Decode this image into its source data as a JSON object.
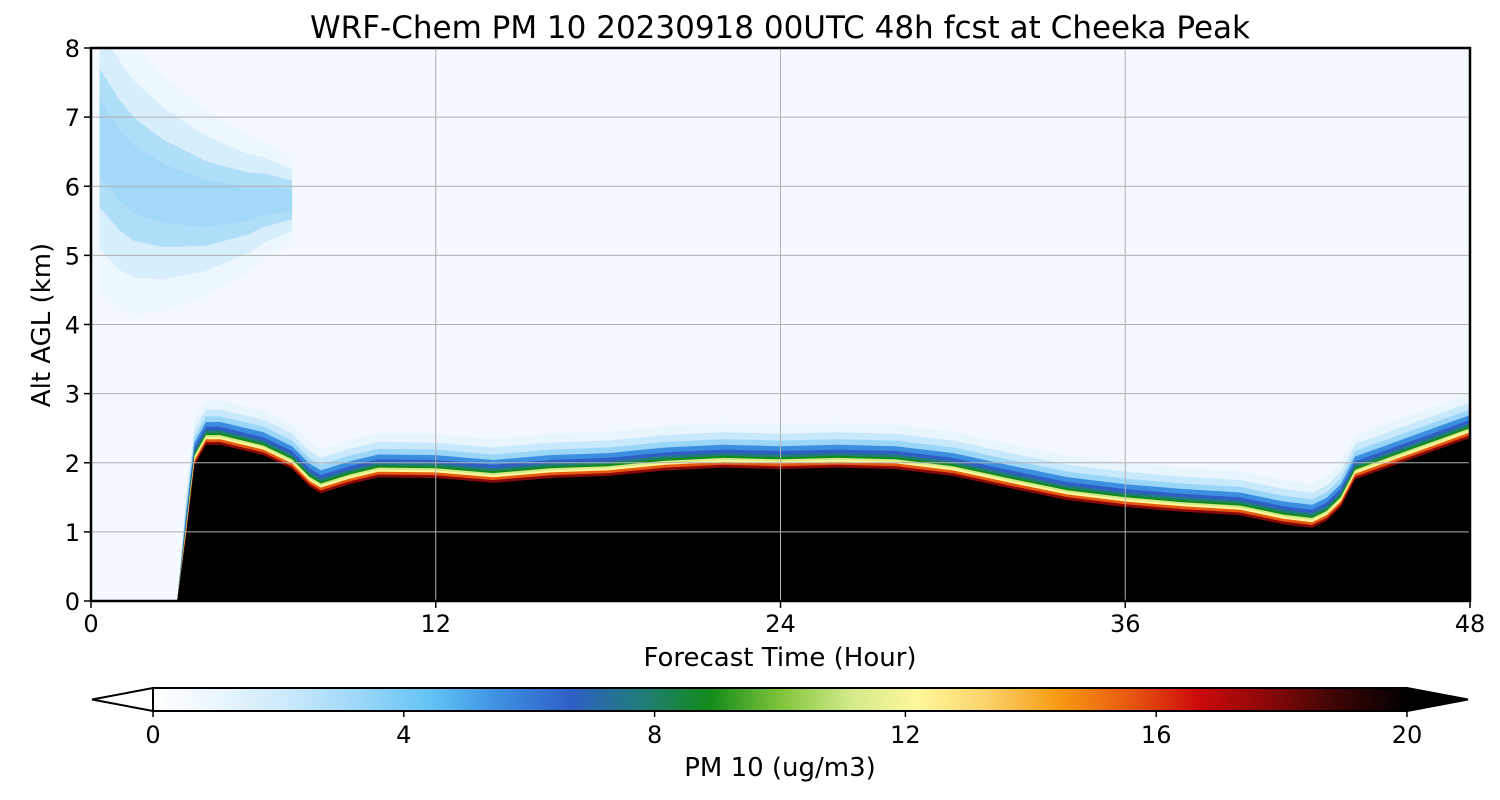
{
  "chart_data": {
    "type": "heatmap",
    "title": "WRF-Chem PM 10  20230918 00UTC 48h fcst at Cheeka Peak",
    "xlabel": "Forecast Time (Hour)",
    "ylabel": "Alt AGL (km)",
    "xlim": [
      0,
      48
    ],
    "ylim": [
      0,
      8
    ],
    "x_ticks": [
      0,
      12,
      24,
      36,
      48
    ],
    "y_ticks": [
      0,
      1,
      2,
      3,
      4,
      5,
      6,
      7,
      8
    ],
    "grid": true,
    "colorbar": {
      "label": "PM 10  (ug/m3)",
      "range": [
        0,
        20
      ],
      "ticks": [
        0,
        4,
        8,
        12,
        16,
        20
      ],
      "extend": "both",
      "colors": [
        "#ffffff",
        "#e8f5fd",
        "#c8e8fb",
        "#99d6f8",
        "#62c3f5",
        "#3c8ee0",
        "#2f5fc6",
        "#1f7c7a",
        "#138b1a",
        "#7fc43a",
        "#d2ea8a",
        "#fff79a",
        "#fbd168",
        "#f79a12",
        "#e85a10",
        "#cc0a0a",
        "#8a0808",
        "#3c0505",
        "#000000"
      ]
    },
    "profile_time": [
      0,
      2.5,
      3,
      3.3,
      3.6,
      4,
      4.5,
      5,
      6,
      7,
      7.6,
      8,
      9,
      10,
      12,
      14,
      16,
      18,
      20,
      22,
      24,
      26,
      28,
      30,
      32,
      34,
      36,
      38,
      40,
      41.5,
      42.5,
      43,
      43.5,
      44,
      45,
      46,
      47,
      48
    ],
    "boundary_layer_top_km": [
      0,
      0,
      0,
      1.0,
      2.05,
      2.35,
      2.35,
      2.3,
      2.2,
      2.0,
      1.75,
      1.65,
      1.78,
      1.88,
      1.87,
      1.8,
      1.87,
      1.9,
      1.98,
      2.02,
      2.0,
      2.02,
      2.0,
      1.9,
      1.72,
      1.55,
      1.45,
      1.38,
      1.33,
      1.2,
      1.15,
      1.25,
      1.45,
      1.85,
      2.0,
      2.15,
      2.3,
      2.45
    ],
    "elevated_plume": {
      "time": [
        0.3,
        1.0,
        1.5,
        2.0,
        2.5,
        3.0,
        3.5,
        4.0,
        4.5,
        5.0,
        5.5,
        6.0,
        6.5,
        7.0
      ],
      "center_km": [
        6.7,
        6.3,
        6.1,
        6.0,
        5.9,
        5.85,
        5.8,
        5.75,
        5.75,
        5.75,
        5.75,
        5.8,
        5.8,
        5.8
      ],
      "peak_ugm3": 4
    },
    "background_aloft_ugm3": 0.5
  }
}
